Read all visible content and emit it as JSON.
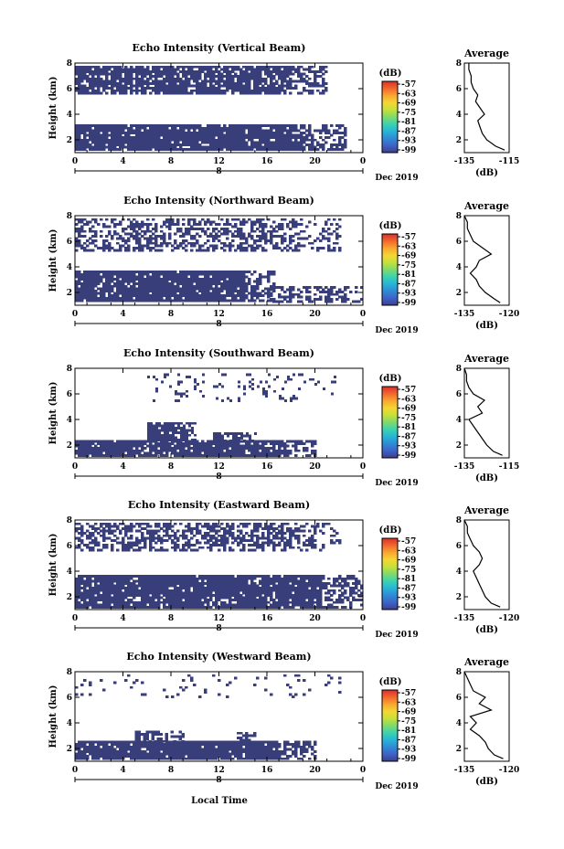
{
  "figure": {
    "xlabel": "Local Time",
    "date_label": "Dec 2019",
    "day_label": "8",
    "colorbar_unit": "(dB)",
    "colorbar_ticks": [
      "-57",
      "-63",
      "-69",
      "-75",
      "-81",
      "-87",
      "-93",
      "-99"
    ],
    "colorbar_colors": [
      "#3b3f8f",
      "#3d63c8",
      "#2f8bd6",
      "#27b5d6",
      "#3cd2b0",
      "#7edb6a",
      "#c6e03a",
      "#f5d633",
      "#f8a631",
      "#f2672c",
      "#d8302b"
    ],
    "cell_color": "#383e7a",
    "average_title": "Average",
    "average_xlabel": "(dB)"
  },
  "chart_data": [
    {
      "type": "heatmap",
      "title": "Echo Intensity (Vertical Beam)",
      "ylabel": "Height (km)",
      "xlim": [
        0,
        24
      ],
      "ylim": [
        1,
        8
      ],
      "x_ticks": [
        "0",
        "4",
        "8",
        "12",
        "16",
        "20",
        "0"
      ],
      "y_ticks": [
        "2",
        "4",
        "6",
        "8"
      ],
      "layers": [
        {
          "y_bottom": 1.3,
          "y_top": 3.2,
          "x_start": 0,
          "x_end": 22.5,
          "fill": 0.93
        },
        {
          "y_bottom": 5.7,
          "y_top": 7.8,
          "x_start": 0,
          "x_end": 21,
          "fill": 0.8
        }
      ],
      "average_profile": {
        "xlim": [
          -135,
          -115
        ],
        "x_ticks": [
          "-135",
          "-115"
        ],
        "y_ticks": [
          "2",
          "4",
          "6",
          "8"
        ],
        "heights": [
          1.2,
          1.5,
          2.0,
          2.5,
          3.0,
          3.5,
          4.0,
          4.5,
          5.0,
          5.5,
          6.0,
          6.5,
          7.0,
          7.5,
          8.0
        ],
        "values": [
          -117,
          -121,
          -125,
          -127,
          -128,
          -129,
          -126,
          -128,
          -130,
          -129,
          -131,
          -132,
          -132,
          -133,
          -133
        ]
      }
    },
    {
      "type": "heatmap",
      "title": "Echo Intensity (Northward Beam)",
      "ylabel": "Height (km)",
      "xlim": [
        0,
        24
      ],
      "ylim": [
        1,
        8
      ],
      "x_ticks": [
        "0",
        "4",
        "8",
        "12",
        "16",
        "20",
        "0"
      ],
      "y_ticks": [
        "2",
        "4",
        "6",
        "8"
      ],
      "layers": [
        {
          "y_bottom": 1.3,
          "y_top": 3.7,
          "x_start": 0,
          "x_end": 16.5,
          "fill": 0.92
        },
        {
          "y_bottom": 1.2,
          "y_top": 2.5,
          "x_start": 16,
          "x_end": 24,
          "fill": 0.45
        },
        {
          "y_bottom": 5.3,
          "y_top": 7.8,
          "x_start": 0,
          "x_end": 22,
          "fill": 0.45
        }
      ],
      "average_profile": {
        "xlim": [
          -135,
          -120
        ],
        "x_ticks": [
          "-135",
          "-120"
        ],
        "y_ticks": [
          "2",
          "4",
          "6",
          "8"
        ],
        "heights": [
          1.2,
          1.5,
          2.0,
          2.5,
          3.0,
          3.5,
          4.0,
          4.5,
          5.0,
          5.5,
          6.0,
          6.5,
          7.0,
          7.5,
          8.0
        ],
        "values": [
          -123,
          -125,
          -128,
          -130,
          -131,
          -133,
          -131,
          -130,
          -126,
          -129,
          -132,
          -133,
          -134,
          -134,
          -135
        ]
      }
    },
    {
      "type": "heatmap",
      "title": "Echo Intensity (Southward Beam)",
      "ylabel": "Height (km)",
      "xlim": [
        0,
        24
      ],
      "ylim": [
        1,
        8
      ],
      "x_ticks": [
        "0",
        "4",
        "8",
        "12",
        "16",
        "20",
        "0"
      ],
      "y_ticks": [
        "2",
        "4",
        "6",
        "8"
      ],
      "layers": [
        {
          "y_bottom": 1.2,
          "y_top": 2.4,
          "x_start": 0,
          "x_end": 20,
          "fill": 0.9
        },
        {
          "y_bottom": 2.4,
          "y_top": 3.8,
          "x_start": 6,
          "x_end": 10,
          "fill": 0.85
        },
        {
          "y_bottom": 2.4,
          "y_top": 3.0,
          "x_start": 11.5,
          "x_end": 15,
          "fill": 0.7
        },
        {
          "y_bottom": 5.4,
          "y_top": 7.6,
          "x_start": 6,
          "x_end": 22,
          "fill": 0.12
        }
      ],
      "average_profile": {
        "xlim": [
          -135,
          -115
        ],
        "x_ticks": [
          "-135",
          "-115"
        ],
        "y_ticks": [
          "2",
          "4",
          "6",
          "8"
        ],
        "heights": [
          1.2,
          1.5,
          2.0,
          2.5,
          3.0,
          3.5,
          4.0,
          4.5,
          5.0,
          5.5,
          6.0,
          6.5,
          7.0,
          7.5,
          8.0
        ],
        "values": [
          -118,
          -122,
          -125,
          -127,
          -129,
          -131,
          -133,
          -127,
          -129,
          -126,
          -131,
          -133,
          -134,
          -134,
          -135
        ]
      }
    },
    {
      "type": "heatmap",
      "title": "Echo Intensity (Eastward Beam)",
      "ylabel": "Height (km)",
      "xlim": [
        0,
        24
      ],
      "ylim": [
        1,
        8
      ],
      "x_ticks": [
        "0",
        "4",
        "8",
        "12",
        "16",
        "20",
        "0"
      ],
      "y_ticks": [
        "2",
        "4",
        "6",
        "8"
      ],
      "layers": [
        {
          "y_bottom": 1.2,
          "y_top": 3.7,
          "x_start": 0,
          "x_end": 24,
          "fill": 0.9
        },
        {
          "y_bottom": 5.6,
          "y_top": 7.8,
          "x_start": 0,
          "x_end": 22,
          "fill": 0.6
        }
      ],
      "average_profile": {
        "xlim": [
          -135,
          -120
        ],
        "x_ticks": [
          "-135",
          "-120"
        ],
        "y_ticks": [
          "2",
          "4",
          "6",
          "8"
        ],
        "heights": [
          1.2,
          1.5,
          2.0,
          2.5,
          3.0,
          3.5,
          4.0,
          4.5,
          5.0,
          5.5,
          6.0,
          6.5,
          7.0,
          7.5,
          8.0
        ],
        "values": [
          -123,
          -126,
          -128,
          -129,
          -130,
          -131,
          -132,
          -130,
          -129,
          -130,
          -132,
          -133,
          -134,
          -134,
          -135
        ]
      }
    },
    {
      "type": "heatmap",
      "title": "Echo Intensity (Westward Beam)",
      "ylabel": "Height (km)",
      "xlim": [
        0,
        24
      ],
      "ylim": [
        1,
        8
      ],
      "x_ticks": [
        "0",
        "4",
        "8",
        "12",
        "16",
        "20",
        "0"
      ],
      "y_ticks": [
        "2",
        "4",
        "6",
        "8"
      ],
      "layers": [
        {
          "y_bottom": 1.2,
          "y_top": 2.6,
          "x_start": 0,
          "x_end": 20,
          "fill": 0.92
        },
        {
          "y_bottom": 2.6,
          "y_top": 3.4,
          "x_start": 5,
          "x_end": 9,
          "fill": 0.7
        },
        {
          "y_bottom": 2.4,
          "y_top": 3.3,
          "x_start": 13.5,
          "x_end": 15,
          "fill": 0.7
        },
        {
          "y_bottom": 6.0,
          "y_top": 7.8,
          "x_start": 0,
          "x_end": 23,
          "fill": 0.08
        }
      ],
      "average_profile": {
        "xlim": [
          -135,
          -120
        ],
        "x_ticks": [
          "-135",
          "-120"
        ],
        "y_ticks": [
          "2",
          "4",
          "6",
          "8"
        ],
        "heights": [
          1.2,
          1.5,
          2.0,
          2.5,
          3.0,
          3.5,
          4.0,
          4.5,
          5.0,
          5.5,
          6.0,
          6.5,
          7.0,
          7.5,
          8.0
        ],
        "values": [
          -122,
          -125,
          -127,
          -128,
          -130,
          -133,
          -131,
          -133,
          -126,
          -130,
          -128,
          -132,
          -133,
          -134,
          -135
        ]
      }
    }
  ]
}
